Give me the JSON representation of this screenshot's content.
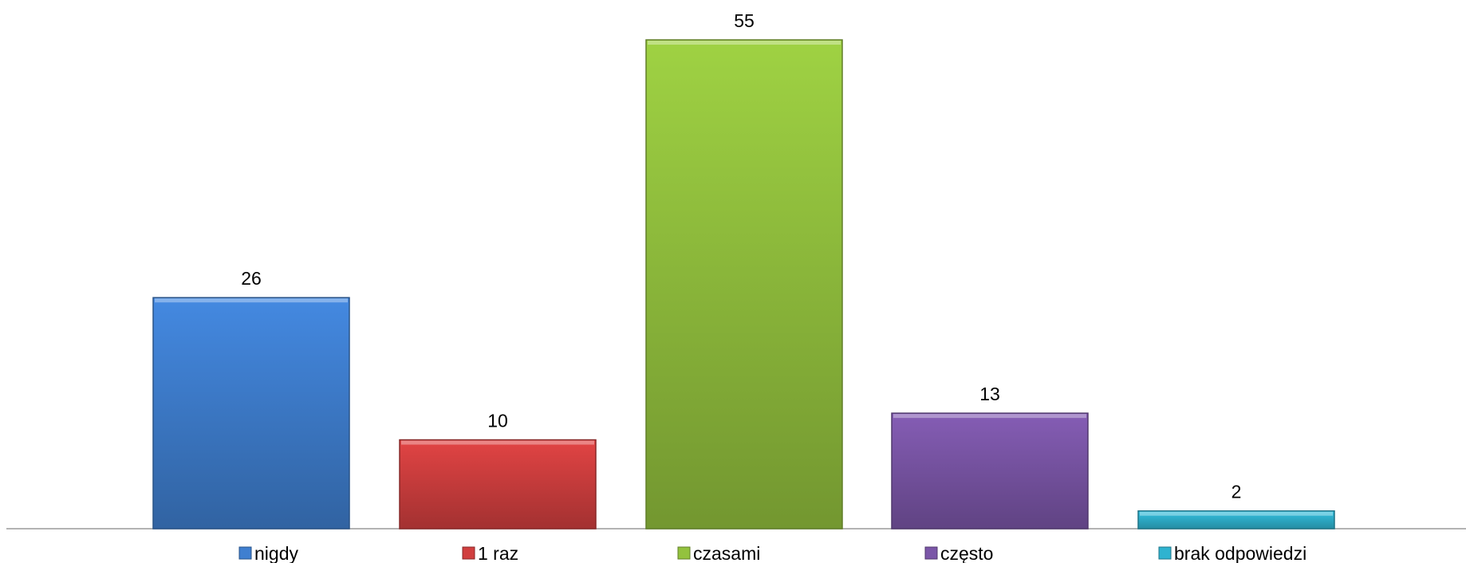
{
  "chart_data": {
    "type": "bar",
    "title": "",
    "xlabel": "",
    "ylabel": "",
    "categories": [
      "nigdy",
      "1 raz",
      "czasami",
      "często",
      "brak odpowiedzi"
    ],
    "values": [
      26,
      10,
      55,
      13,
      2
    ],
    "data_labels": [
      "26",
      "10",
      "55",
      "13",
      "2"
    ],
    "colors": [
      "#3f7fd0",
      "#d13f3f",
      "#93c23e",
      "#7b56a8",
      "#2fb3d0"
    ],
    "ylim": [
      0,
      55
    ],
    "grid": false,
    "legend": {
      "placement": "bottom",
      "entries": [
        "nigdy",
        "1 raz",
        "czasami",
        "często",
        "brak odpowiedzi"
      ]
    }
  }
}
